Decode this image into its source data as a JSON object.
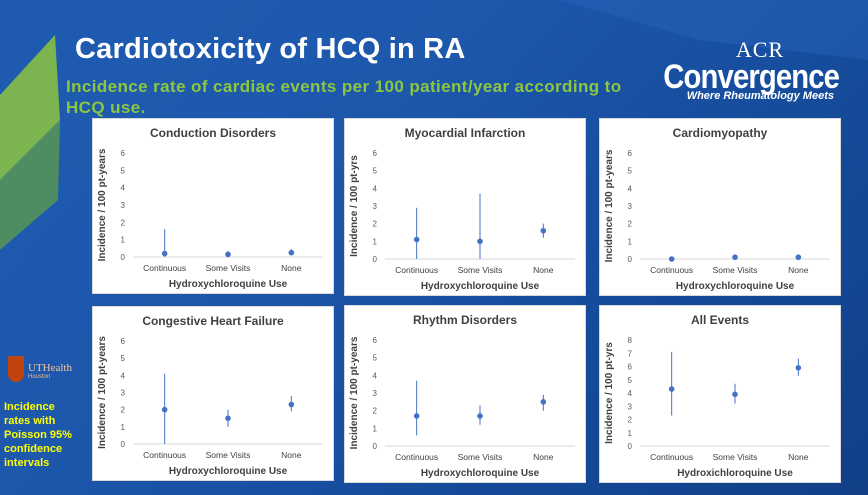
{
  "slide": {
    "title": "Cardiotoxicity of HCQ in RA",
    "subtitle": "Incidence rate of cardiac events per 100 patient/year according to HCQ use.",
    "logo": {
      "line1": "ACR",
      "line2": "Convergence",
      "tagline": "Where Rheumatology Meets"
    },
    "institution": {
      "name": "UTHealth",
      "sub": "Houston"
    },
    "note": "Incidence rates with Poisson 95% confidence intervals",
    "colors": {
      "background": "#1d58ad",
      "subtitle": "#8dc63f",
      "note": "#ffff00",
      "point": "#4472c4"
    }
  },
  "chart_data": [
    {
      "type": "scatter",
      "title": "Conduction Disorders",
      "xlabel": "Hydroxychloroquine Use",
      "ylabel": "Incidence / 100 pt-years",
      "categories": [
        "Continuous",
        "Some Visits",
        "None"
      ],
      "values": [
        0.2,
        0.15,
        0.25
      ],
      "ci_low": [
        0.0,
        0.0,
        0.1
      ],
      "ci_high": [
        1.6,
        0.35,
        0.45
      ],
      "ylim": [
        0,
        6
      ],
      "yticks": [
        0,
        1,
        2,
        3,
        4,
        5,
        6
      ]
    },
    {
      "type": "scatter",
      "title": "Myocardial Infarction",
      "xlabel": "Hydroxychloroquine Use",
      "ylabel": "Incidence / 100 pt-yrs",
      "categories": [
        "Continuous",
        "Some Visits",
        "None"
      ],
      "values": [
        1.1,
        1.0,
        1.6
      ],
      "ci_low": [
        0.0,
        0.0,
        1.2
      ],
      "ci_high": [
        2.9,
        3.7,
        2.0
      ],
      "ylim": [
        0,
        6
      ],
      "yticks": [
        0,
        1,
        2,
        3,
        4,
        5,
        6
      ]
    },
    {
      "type": "scatter",
      "title": "Cardiomyopathy",
      "xlabel": "Hydroxychloroquine Use",
      "ylabel": "Incidence / 100 pt-years",
      "categories": [
        "Continuous",
        "Some Visits",
        "None"
      ],
      "values": [
        0.0,
        0.1,
        0.1
      ],
      "ci_low": [
        0.0,
        0.05,
        0.05
      ],
      "ci_high": [
        0.05,
        0.2,
        0.2
      ],
      "ylim": [
        0,
        6
      ],
      "yticks": [
        0,
        1,
        2,
        3,
        4,
        5,
        6
      ]
    },
    {
      "type": "scatter",
      "title": "Congestive Heart Failure",
      "xlabel": "Hydroxychloroquine Use",
      "ylabel": "Incidence / 100 pt-years",
      "categories": [
        "Continuous",
        "Some Visits",
        "None"
      ],
      "values": [
        2.0,
        1.5,
        2.3
      ],
      "ci_low": [
        0.0,
        1.0,
        1.9
      ],
      "ci_high": [
        4.1,
        2.0,
        2.8
      ],
      "ylim": [
        0,
        6
      ],
      "yticks": [
        0,
        1,
        2,
        3,
        4,
        5,
        6
      ]
    },
    {
      "type": "scatter",
      "title": "Rhythm Disorders",
      "xlabel": "Hydroxychloroquine Use",
      "ylabel": "Incidence / 100 pt-years",
      "categories": [
        "Continuous",
        "Some Visits",
        "None"
      ],
      "values": [
        1.7,
        1.7,
        2.5
      ],
      "ci_low": [
        0.6,
        1.2,
        2.0
      ],
      "ci_high": [
        3.7,
        2.3,
        2.9
      ],
      "ylim": [
        0,
        6
      ],
      "yticks": [
        0,
        1,
        2,
        3,
        4,
        5,
        6
      ]
    },
    {
      "type": "scatter",
      "title": "All Events",
      "xlabel": "Hydroxichloroquine Use",
      "ylabel": "Incidence / 100 pt-yrs",
      "categories": [
        "Continuous",
        "Some Visits",
        "None"
      ],
      "values": [
        4.3,
        3.9,
        5.9
      ],
      "ci_low": [
        2.3,
        3.2,
        5.3
      ],
      "ci_high": [
        7.1,
        4.7,
        6.6
      ],
      "ylim": [
        0,
        8
      ],
      "yticks": [
        0,
        1,
        2,
        3,
        4,
        5,
        6,
        7,
        8
      ]
    }
  ]
}
